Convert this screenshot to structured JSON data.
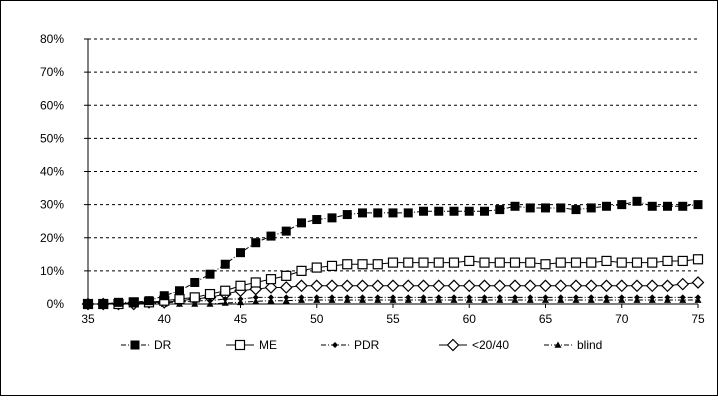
{
  "chart_data": {
    "type": "line",
    "title": "",
    "xlabel": "",
    "ylabel": "",
    "xlim": [
      35,
      75
    ],
    "ylim": [
      0,
      0.8
    ],
    "x_ticks": [
      35,
      40,
      45,
      50,
      55,
      60,
      65,
      70,
      75
    ],
    "x_tick_labels": [
      "35",
      "40",
      "45",
      "50",
      "55",
      "60",
      "65",
      "70",
      "75"
    ],
    "y_ticks": [
      0,
      0.1,
      0.2,
      0.3,
      0.4,
      0.5,
      0.6,
      0.7,
      0.8
    ],
    "y_tick_labels": [
      "0%",
      "10%",
      "20%",
      "30%",
      "40%",
      "50%",
      "60%",
      "70%",
      "80%"
    ],
    "grid": "horizontal dashed",
    "legend_position": "bottom",
    "series": [
      {
        "name": "DR",
        "marker": "filled-square",
        "line": "dash-dot",
        "color": "#000000",
        "x": [
          35,
          36,
          37,
          38,
          39,
          40,
          41,
          42,
          43,
          44,
          45,
          46,
          47,
          48,
          49,
          50,
          51,
          52,
          53,
          54,
          55,
          56,
          57,
          58,
          59,
          60,
          61,
          62,
          63,
          64,
          65,
          66,
          67,
          68,
          69,
          70,
          71,
          72,
          73,
          74,
          75
        ],
        "y": [
          0,
          0,
          0.005,
          0.005,
          0.01,
          0.025,
          0.04,
          0.065,
          0.09,
          0.12,
          0.155,
          0.185,
          0.205,
          0.22,
          0.245,
          0.255,
          0.26,
          0.27,
          0.275,
          0.275,
          0.275,
          0.275,
          0.28,
          0.28,
          0.28,
          0.28,
          0.28,
          0.285,
          0.295,
          0.29,
          0.29,
          0.29,
          0.285,
          0.29,
          0.295,
          0.3,
          0.31,
          0.295,
          0.295,
          0.295,
          0.3
        ]
      },
      {
        "name": "ME",
        "marker": "open-square",
        "line": "solid",
        "color": "#000000",
        "x": [
          35,
          36,
          37,
          38,
          39,
          40,
          41,
          42,
          43,
          44,
          45,
          46,
          47,
          48,
          49,
          50,
          51,
          52,
          53,
          54,
          55,
          56,
          57,
          58,
          59,
          60,
          61,
          62,
          63,
          64,
          65,
          66,
          67,
          68,
          69,
          70,
          71,
          72,
          73,
          74,
          75
        ],
        "y": [
          0,
          0,
          0,
          0.005,
          0.005,
          0.01,
          0.015,
          0.02,
          0.03,
          0.04,
          0.055,
          0.065,
          0.075,
          0.085,
          0.1,
          0.11,
          0.115,
          0.12,
          0.12,
          0.12,
          0.125,
          0.125,
          0.125,
          0.125,
          0.125,
          0.13,
          0.125,
          0.125,
          0.125,
          0.125,
          0.12,
          0.125,
          0.125,
          0.125,
          0.13,
          0.125,
          0.125,
          0.125,
          0.13,
          0.13,
          0.135
        ]
      },
      {
        "name": "PDR",
        "marker": "filled-diamond",
        "line": "dash-dot",
        "color": "#000000",
        "x": [
          35,
          36,
          37,
          38,
          39,
          40,
          41,
          42,
          43,
          44,
          45,
          46,
          47,
          48,
          49,
          50,
          51,
          52,
          53,
          54,
          55,
          56,
          57,
          58,
          59,
          60,
          61,
          62,
          63,
          64,
          65,
          66,
          67,
          68,
          69,
          70,
          71,
          72,
          73,
          74,
          75
        ],
        "y": [
          0,
          0,
          0,
          0,
          0,
          0.005,
          0.005,
          0.01,
          0.01,
          0.015,
          0.015,
          0.02,
          0.02,
          0.02,
          0.02,
          0.02,
          0.02,
          0.02,
          0.02,
          0.02,
          0.02,
          0.02,
          0.02,
          0.02,
          0.02,
          0.02,
          0.02,
          0.02,
          0.02,
          0.02,
          0.02,
          0.02,
          0.02,
          0.02,
          0.02,
          0.02,
          0.02,
          0.02,
          0.02,
          0.02,
          0.02
        ]
      },
      {
        "name": "<20/40",
        "marker": "open-diamond",
        "line": "solid",
        "color": "#000000",
        "x": [
          35,
          36,
          37,
          38,
          39,
          40,
          41,
          42,
          43,
          44,
          45,
          46,
          47,
          48,
          49,
          50,
          51,
          52,
          53,
          54,
          55,
          56,
          57,
          58,
          59,
          60,
          61,
          62,
          63,
          64,
          65,
          66,
          67,
          68,
          69,
          70,
          71,
          72,
          73,
          74,
          75
        ],
        "y": [
          0,
          0,
          0,
          0,
          0.005,
          0.005,
          0.01,
          0.015,
          0.02,
          0.03,
          0.04,
          0.045,
          0.05,
          0.05,
          0.055,
          0.055,
          0.055,
          0.055,
          0.055,
          0.055,
          0.055,
          0.055,
          0.055,
          0.055,
          0.055,
          0.055,
          0.055,
          0.055,
          0.055,
          0.055,
          0.055,
          0.055,
          0.055,
          0.055,
          0.055,
          0.055,
          0.055,
          0.055,
          0.055,
          0.06,
          0.065
        ]
      },
      {
        "name": "blind",
        "marker": "filled-triangle",
        "line": "dash-dot",
        "color": "#000000",
        "x": [
          35,
          36,
          37,
          38,
          39,
          40,
          41,
          42,
          43,
          44,
          45,
          46,
          47,
          48,
          49,
          50,
          51,
          52,
          53,
          54,
          55,
          56,
          57,
          58,
          59,
          60,
          61,
          62,
          63,
          64,
          65,
          66,
          67,
          68,
          69,
          70,
          71,
          72,
          73,
          74,
          75
        ],
        "y": [
          0,
          0,
          0,
          0,
          0,
          0,
          0,
          0,
          0,
          0.003,
          0.005,
          0.008,
          0.01,
          0.01,
          0.012,
          0.012,
          0.012,
          0.012,
          0.012,
          0.012,
          0.012,
          0.012,
          0.012,
          0.012,
          0.012,
          0.012,
          0.012,
          0.012,
          0.012,
          0.012,
          0.012,
          0.012,
          0.012,
          0.012,
          0.012,
          0.012,
          0.012,
          0.012,
          0.012,
          0.012,
          0.012
        ]
      }
    ]
  }
}
